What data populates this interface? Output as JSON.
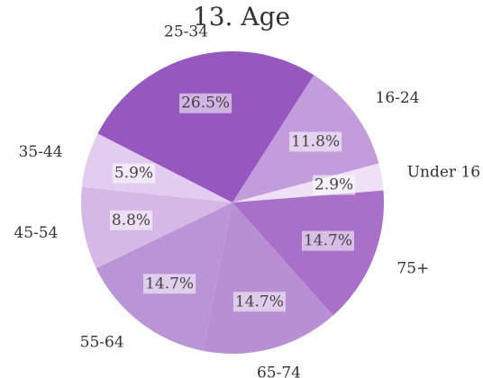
{
  "chart_data": {
    "type": "pie",
    "title": "13. Age",
    "slices": [
      {
        "label": "Under 16",
        "value": 2.9,
        "display": "2.9%",
        "color": "#eee1f5"
      },
      {
        "label": "75+",
        "value": 14.7,
        "display": "14.7%",
        "color": "#a870c8"
      },
      {
        "label": "65-74",
        "value": 14.7,
        "display": "14.7%",
        "color": "#b88fd3"
      },
      {
        "label": "55-64",
        "value": 14.7,
        "display": "14.7%",
        "color": "#b994d6"
      },
      {
        "label": "45-54",
        "value": 8.8,
        "display": "8.8%",
        "color": "#d6b8e6"
      },
      {
        "label": "35-44",
        "value": 5.9,
        "display": "5.9%",
        "color": "#e2ccef"
      },
      {
        "label": "25-34",
        "value": 26.5,
        "display": "26.5%",
        "color": "#9657be"
      },
      {
        "label": "16-24",
        "value": 11.8,
        "display": "11.8%",
        "color": "#c39ddb"
      }
    ],
    "start_angle_deg": -15,
    "direction": "clockwise",
    "legend": "none"
  }
}
